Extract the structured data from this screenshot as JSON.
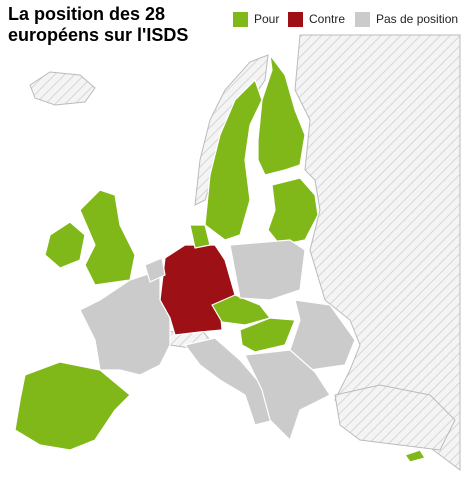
{
  "header": {
    "title_lines": [
      "La position des 28",
      "européens sur l'ISDS"
    ]
  },
  "legend": [
    {
      "label": "Pour",
      "color": "#80b819"
    },
    {
      "label": "Contre",
      "color": "#9c1016"
    },
    {
      "label": "Pas de position",
      "color": "#cbcbcb"
    }
  ]
}
